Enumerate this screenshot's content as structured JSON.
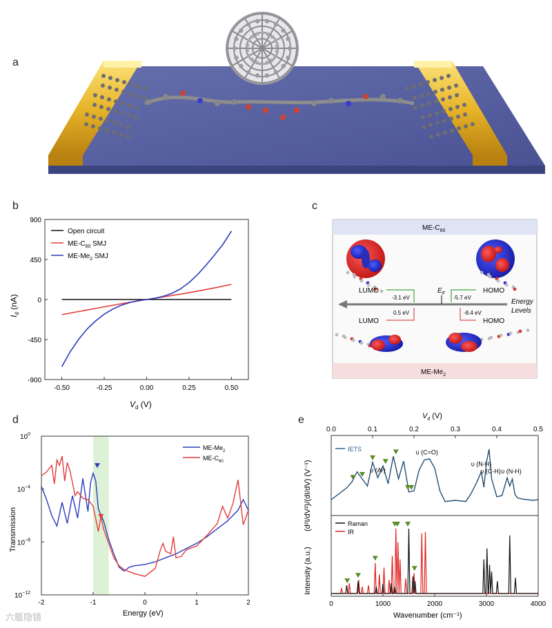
{
  "figure": {
    "letters": {
      "a": "a",
      "b": "b",
      "c": "c",
      "d": "d",
      "e": "e"
    },
    "watermark": "六甑隐镜"
  },
  "chart_data": [
    {
      "panel": "b",
      "type": "line",
      "title": "",
      "xlabel": "V_d (V)",
      "ylabel": "I_d (nA)",
      "xlim": [
        -0.6,
        0.6
      ],
      "ylim": [
        -900,
        900
      ],
      "x_ticks": [
        -0.5,
        -0.25,
        0,
        0.25,
        0.5
      ],
      "x_tick_labels": [
        "-0.50",
        "-0.25",
        "0.00",
        "0.25",
        "0.50"
      ],
      "y_ticks": [
        -900,
        -450,
        0,
        450,
        900
      ],
      "y_tick_labels": [
        "-900",
        "-450",
        "0",
        "450",
        "900"
      ],
      "legend_position": "top-left",
      "series": [
        {
          "name": "Open circuit",
          "color": "#111111",
          "x": [
            -0.5,
            0.5
          ],
          "y": [
            0,
            0
          ]
        },
        {
          "name": "ME-C60 SMJ",
          "color": "#e23b3b",
          "x": [
            -0.5,
            -0.4,
            -0.3,
            -0.2,
            -0.1,
            0,
            0.1,
            0.2,
            0.3,
            0.4,
            0.5
          ],
          "y": [
            -170,
            -135,
            -100,
            -65,
            -32,
            0,
            30,
            60,
            95,
            130,
            170
          ]
        },
        {
          "name": "ME-Me2 SMJ",
          "color": "#2a3ab8",
          "x": [
            -0.5,
            -0.45,
            -0.4,
            -0.35,
            -0.3,
            -0.25,
            -0.2,
            -0.15,
            -0.1,
            -0.05,
            0,
            0.05,
            0.1,
            0.15,
            0.2,
            0.25,
            0.3,
            0.35,
            0.4,
            0.45,
            0.5
          ],
          "y": [
            -755,
            -585,
            -445,
            -330,
            -240,
            -165,
            -108,
            -65,
            -35,
            -13,
            0,
            14,
            37,
            70,
            120,
            190,
            280,
            385,
            500,
            620,
            770
          ]
        }
      ]
    },
    {
      "panel": "c",
      "type": "diagram",
      "top_label": "ME-C60",
      "bottom_label": "ME-Me2",
      "fermi_label": "EF",
      "axis_label_1": "Energy",
      "axis_label_2": "Levels",
      "levels": [
        {
          "name": "LUMO",
          "value": "-3.1 eV",
          "molecule": "ME-C60",
          "color": "#5fb65f"
        },
        {
          "name": "HOMO",
          "value": "-5.7 eV",
          "molecule": "ME-C60",
          "color": "#5fb65f"
        },
        {
          "name": "LUMO",
          "value": "0.5 eV",
          "molecule": "ME-Me2",
          "color": "#e07070"
        },
        {
          "name": "HOMO",
          "value": "-8.4 eV",
          "molecule": "ME-Me2",
          "color": "#e07070"
        }
      ]
    },
    {
      "panel": "d",
      "type": "line",
      "xlabel": "Energy (eV)",
      "ylabel": "Transmission",
      "xlim": [
        -2,
        2
      ],
      "y_scale": "log",
      "ylim_exponent": [
        -12,
        0
      ],
      "x_ticks": [
        -2,
        -1,
        0,
        1,
        2
      ],
      "x_tick_labels": [
        "-2",
        "-1",
        "0",
        "1",
        "2"
      ],
      "y_ticks_exponent": [
        -12,
        -8,
        -4,
        0
      ],
      "y_tick_labels": [
        "10",
        "10",
        "10",
        "10"
      ],
      "y_tick_exponents": [
        "−12",
        "−8",
        "−4",
        "0"
      ],
      "highlight_region": [
        -1.0,
        -0.7
      ],
      "legend_position": "top-right",
      "series": [
        {
          "name": "ME-Me2",
          "color": "#2a3ab8",
          "x": [
            -2.0,
            -1.9,
            -1.8,
            -1.7,
            -1.6,
            -1.5,
            -1.4,
            -1.3,
            -1.2,
            -1.1,
            -1.05,
            -1.0,
            -0.95,
            -0.9,
            -0.8,
            -0.7,
            -0.6,
            -0.5,
            -0.4,
            -0.3,
            -0.2,
            0,
            0.2,
            0.4,
            0.6,
            0.8,
            1.0,
            1.2,
            1.4,
            1.6,
            1.8,
            1.9,
            2.0
          ],
          "log10y": [
            -3.8,
            -4.8,
            -6.0,
            -6.8,
            -5.0,
            -6.6,
            -4.5,
            -6.2,
            -3.2,
            -5.7,
            -3.5,
            -2.8,
            -3.4,
            -5.5,
            -6.4,
            -7.8,
            -8.9,
            -9.9,
            -10.2,
            -9.9,
            -9.8,
            -9.7,
            -9.5,
            -9.2,
            -8.9,
            -8.5,
            -8.1,
            -7.6,
            -7.0,
            -6.4,
            -5.6,
            -4.8,
            -5.6
          ]
        },
        {
          "name": "ME-C60",
          "color": "#e23b3b",
          "x": [
            -2.0,
            -1.9,
            -1.8,
            -1.75,
            -1.7,
            -1.65,
            -1.6,
            -1.55,
            -1.5,
            -1.45,
            -1.4,
            -1.35,
            -1.3,
            -1.2,
            -1.1,
            -1.0,
            -0.9,
            -0.85,
            -0.8,
            -0.7,
            -0.6,
            -0.5,
            -0.4,
            -0.2,
            0,
            0.2,
            0.3,
            0.35,
            0.4,
            0.5,
            0.55,
            0.6,
            0.7,
            0.8,
            1.0,
            1.2,
            1.4,
            1.5,
            1.6,
            1.7,
            1.8,
            1.85,
            1.9,
            2.0
          ],
          "log10y": [
            -3.0,
            -2.7,
            -2.2,
            -3.6,
            -1.8,
            -2.2,
            -1.5,
            -3.4,
            -2.0,
            -2.6,
            -3.5,
            -4.5,
            -4.2,
            -4.7,
            -4.8,
            -5.3,
            -7.2,
            -6.1,
            -7.0,
            -8.1,
            -9.2,
            -9.8,
            -10.1,
            -10.4,
            -10.6,
            -10.0,
            -8.6,
            -8.1,
            -8.7,
            -8.9,
            -7.6,
            -9.2,
            -9.1,
            -8.6,
            -8.3,
            -7.5,
            -6.6,
            -5.3,
            -6.2,
            -5.1,
            -3.3,
            -5.0,
            -6.7,
            -5.6
          ]
        }
      ],
      "markers": [
        {
          "series": "ME-Me2",
          "x": -0.92,
          "log10y": -2.25,
          "color": "#2a3ab8"
        },
        {
          "series": "ME-C60",
          "x": -0.85,
          "log10y": -6.1,
          "color": "#e23b3b"
        }
      ]
    },
    {
      "panel": "e",
      "type": "line",
      "top_xlabel": "V_d (V)",
      "top_xlim": [
        0,
        0.5
      ],
      "top_x_ticks": [
        0,
        0.1,
        0.2,
        0.3,
        0.4,
        0.5
      ],
      "top_x_tick_labels": [
        "0.0",
        "0.1",
        "0.2",
        "0.3",
        "0.4",
        "0.5"
      ],
      "xlabel": "Wavenumber (cm⁻¹)",
      "xlim": [
        0,
        4000
      ],
      "x_ticks": [
        0,
        1000,
        2000,
        3000,
        4000
      ],
      "x_tick_labels": [
        "0",
        "1000",
        "2000",
        "3000",
        "4000"
      ],
      "ylabel_top": "(d²I/dV²)/(dI/dV) (V⁻¹)",
      "ylabel_bottom": "Intensity (a.u.)",
      "iets": {
        "name": "IETS",
        "color": "#2a5f8f",
        "x": [
          0,
          150,
          300,
          400,
          500,
          600,
          700,
          800,
          900,
          1000,
          1100,
          1200,
          1300,
          1400,
          1500,
          1600,
          1700,
          1800,
          1900,
          2000,
          2100,
          2200,
          2400,
          2600,
          2700,
          2800,
          2900,
          2950,
          3000,
          3050,
          3100,
          3200,
          3300,
          3400,
          3450,
          3500,
          3550,
          3600,
          3700,
          3800,
          3900,
          4000
        ],
        "y": [
          0.15,
          0.25,
          0.35,
          0.45,
          0.62,
          0.5,
          0.38,
          0.78,
          0.52,
          0.72,
          0.42,
          0.88,
          0.5,
          0.8,
          0.28,
          0.3,
          0.65,
          0.82,
          0.84,
          0.68,
          0.3,
          0.12,
          0.14,
          0.12,
          0.25,
          0.42,
          0.62,
          0.36,
          0.78,
          1.0,
          0.5,
          0.2,
          0.22,
          0.52,
          0.38,
          0.5,
          0.24,
          0.18,
          0.16,
          0.15,
          0.14,
          0.15
        ]
      },
      "iets_annotations": [
        {
          "label": "υ (Ar)",
          "x": 900
        },
        {
          "label": "υ (C=O)",
          "x": 1850
        },
        {
          "label": "υ (N-H)",
          "x": 2900
        },
        {
          "label": "υ (C-H)",
          "x": 3080
        },
        {
          "label": "υ (N-H)",
          "x": 3480
        }
      ],
      "iets_markers_x": [
        420,
        600,
        800,
        1050,
        1250,
        1480,
        1550
      ],
      "raman": {
        "name": "Raman",
        "color": "#111111",
        "peaks": [
          {
            "x": 300,
            "h": 0.12
          },
          {
            "x": 520,
            "h": 0.18
          },
          {
            "x": 870,
            "h": 0.1
          },
          {
            "x": 1000,
            "h": 0.14
          },
          {
            "x": 1160,
            "h": 0.15
          },
          {
            "x": 1230,
            "h": 0.1
          },
          {
            "x": 1500,
            "h": 0.95
          },
          {
            "x": 1580,
            "h": 0.25
          },
          {
            "x": 1620,
            "h": 0.18
          },
          {
            "x": 2950,
            "h": 0.5
          },
          {
            "x": 3010,
            "h": 0.66
          },
          {
            "x": 3060,
            "h": 0.42
          },
          {
            "x": 3100,
            "h": 0.32
          },
          {
            "x": 3210,
            "h": 0.18
          },
          {
            "x": 3450,
            "h": 0.85
          },
          {
            "x": 3560,
            "h": 0.23
          }
        ]
      },
      "ir": {
        "name": "IR",
        "color": "#e02020",
        "peaks": [
          {
            "x": 200,
            "h": 0.08
          },
          {
            "x": 350,
            "h": 0.15
          },
          {
            "x": 530,
            "h": 0.2
          },
          {
            "x": 600,
            "h": 0.1
          },
          {
            "x": 720,
            "h": 0.12
          },
          {
            "x": 850,
            "h": 0.45
          },
          {
            "x": 930,
            "h": 0.28
          },
          {
            "x": 1020,
            "h": 0.38
          },
          {
            "x": 1120,
            "h": 0.2
          },
          {
            "x": 1180,
            "h": 0.55
          },
          {
            "x": 1250,
            "h": 0.95
          },
          {
            "x": 1290,
            "h": 0.75
          },
          {
            "x": 1330,
            "h": 0.5
          },
          {
            "x": 1440,
            "h": 0.22
          },
          {
            "x": 1600,
            "h": 0.3
          },
          {
            "x": 1750,
            "h": 0.88
          },
          {
            "x": 1820,
            "h": 0.9
          }
        ]
      },
      "spectra_markers_x": [
        310,
        520,
        850,
        1230,
        1280,
        1480,
        1610
      ]
    }
  ],
  "panel_b_legend": {
    "open": "Open circuit",
    "c60_prefix": "ME-C",
    "c60_sub": "60",
    "c60_suffix": " SMJ",
    "me2_prefix": "ME-Me",
    "me2_sub": "2",
    "me2_suffix": " SMJ"
  },
  "axis_text": {
    "b_ylabel_main": "I",
    "b_ylabel_sub": "d",
    "b_ylabel_unit": " (nA)",
    "b_xlabel_main": "V",
    "b_xlabel_sub": "d",
    "b_xlabel_unit": " (V)",
    "d_xlabel": "Energy (eV)",
    "d_ylabel": "Transmission",
    "d_leg_me2_prefix": "ME-Me",
    "d_leg_me2_sub": "2",
    "d_leg_c60_prefix": "ME-C",
    "d_leg_c60_sub": "60",
    "e_top_main": "V",
    "e_top_sub": "d",
    "e_top_unit": " (V)",
    "e_xlabel": "Wavenumber (cm⁻¹)",
    "e_ylabel_top": "(d²I/dV²)/(dI/dV) (V⁻¹)",
    "e_ylabel_bottom": "Intensity (a.u.)",
    "e_leg_iets": "IETS",
    "e_leg_raman": "Raman",
    "e_leg_ir": "IR",
    "c_top_prefix": "ME-C",
    "c_top_sub": "60",
    "c_bottom_prefix": "ME-Me",
    "c_bottom_sub": "2",
    "c_ef_main": "E",
    "c_ef_sub": "F"
  }
}
